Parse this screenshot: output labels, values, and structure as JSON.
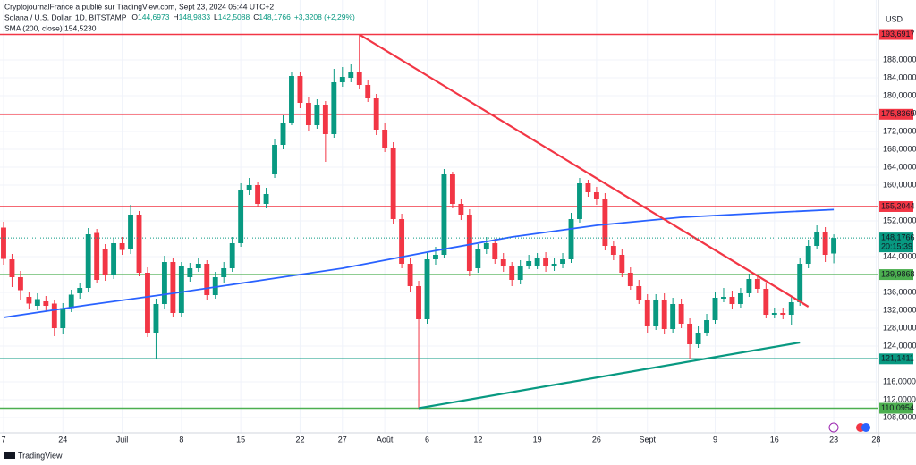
{
  "header": {
    "publisher": "CryptojournalFrance a publié sur TradingView.com, Sept 23, 2024 05:44 UTC+2",
    "symbol": "Solana / U.S. Dollar, 1D, BITSTAMP",
    "ohlc": [
      "O",
      "144,6973",
      "H",
      "148,9833",
      "L",
      "142,5088",
      "C",
      "148,1766",
      "+3,3208 (+2,29%)"
    ]
  },
  "footer": "TradingView",
  "chart_data": {
    "type": "candlestick",
    "currency": "USD",
    "up_color": "#089981",
    "down_color": "#f23645",
    "grid": true,
    "xlim": [
      -0.42,
      103.27
    ],
    "ylim": [
      104.6,
      201.4
    ],
    "xticks": [
      {
        "value": 0,
        "label": "7"
      },
      {
        "value": 7,
        "label": "24"
      },
      {
        "value": 14,
        "label": "Juil"
      },
      {
        "value": 21,
        "label": "8"
      },
      {
        "value": 28,
        "label": "15"
      },
      {
        "value": 35,
        "label": "22"
      },
      {
        "value": 40,
        "label": "27"
      },
      {
        "value": 45,
        "label": "Août"
      },
      {
        "value": 50,
        "label": "6"
      },
      {
        "value": 56,
        "label": "12"
      },
      {
        "value": 63,
        "label": "19"
      },
      {
        "value": 70,
        "label": "26"
      },
      {
        "value": 76,
        "label": "Sept"
      },
      {
        "value": 84,
        "label": "9"
      },
      {
        "value": 91,
        "label": "16"
      },
      {
        "value": 98,
        "label": "23"
      },
      {
        "value": 103,
        "label": "28"
      }
    ],
    "yticks": [
      {
        "value": 108,
        "label": "108,0000"
      },
      {
        "value": 112,
        "label": "112,0000"
      },
      {
        "value": 116,
        "label": "116,0000"
      },
      {
        "value": 124,
        "label": "124,0000"
      },
      {
        "value": 128,
        "label": "128,0000"
      },
      {
        "value": 132,
        "label": "132,0000"
      },
      {
        "value": 136,
        "label": "136,0000"
      },
      {
        "value": 144,
        "label": "144,0000"
      },
      {
        "value": 152,
        "label": "152,0000"
      },
      {
        "value": 160,
        "label": "160,0000"
      },
      {
        "value": 164,
        "label": "164,0000"
      },
      {
        "value": 168,
        "label": "168,0000"
      },
      {
        "value": 172,
        "label": "172,0000"
      },
      {
        "value": 176,
        "label": "176,0000"
      },
      {
        "value": 180,
        "label": "180,0000"
      },
      {
        "value": 184,
        "label": "184,0000"
      },
      {
        "value": 188,
        "label": "188,0000"
      }
    ],
    "open": [
      150.5,
      143.4,
      139.4,
      135,
      133,
      134,
      133.5,
      128,
      132.5,
      135.8,
      137,
      149.3,
      145.8,
      139.8,
      147,
      145.6,
      153.4,
      140.4,
      127,
      133.4,
      142.8,
      131.4,
      139.4,
      141.4,
      142.4,
      135.4,
      139.4,
      141.4,
      147,
      159,
      160,
      155.8,
      162.4,
      169,
      174,
      184.4,
      178.4,
      173.4,
      178,
      171.4,
      183,
      184,
      185.4,
      182.4,
      179.4,
      172.4,
      168.4,
      152.4,
      142.4,
      137.4,
      130,
      143.4,
      144.4,
      162.4,
      155.8,
      153.4,
      141.4,
      145.8,
      147,
      143.4,
      141.8,
      138.8,
      142,
      142,
      143.8,
      141.8,
      142.4,
      143.4,
      152.4,
      160.4,
      158.4,
      157,
      146.4,
      144.4,
      140.4,
      137.4,
      134.4,
      128.4,
      134.4,
      127.8,
      133.4,
      129,
      124.4,
      127,
      129.8,
      134.6,
      135,
      133.4,
      135.8,
      139,
      136.8,
      131,
      131.4,
      131,
      133.8,
      142.4,
      146.4,
      149.4,
      144.6973
    ],
    "high": [
      151.8,
      144.6,
      140.8,
      136.2,
      135.8,
      135.2,
      134.4,
      133.6,
      136.6,
      138.2,
      150.4,
      150.2,
      146.8,
      148.2,
      148.4,
      155.6,
      154.2,
      141.6,
      134.6,
      144.2,
      143.8,
      142.8,
      142.6,
      143.8,
      143.2,
      140.6,
      142.8,
      148.4,
      160.4,
      161.6,
      160.8,
      159.4,
      170.4,
      175.6,
      185.4,
      185.2,
      179.6,
      179.2,
      178.8,
      186,
      186.4,
      187,
      193.69,
      183.6,
      180.4,
      173.8,
      169.6,
      153.6,
      143.8,
      138.6,
      144.8,
      146.2,
      163.6,
      163,
      157,
      154.6,
      146.8,
      148.4,
      148,
      144.8,
      142.8,
      143.2,
      144.4,
      144.8,
      145,
      143.6,
      144.8,
      153.8,
      161.6,
      161.2,
      159.6,
      158.2,
      147.6,
      145.8,
      141.6,
      138.8,
      135.6,
      135.6,
      135.8,
      134.8,
      134.6,
      130.2,
      128.4,
      131.2,
      136.2,
      137,
      136.4,
      137,
      140.2,
      140,
      138,
      132.6,
      132.6,
      135,
      143.6,
      147.8,
      151,
      150.6,
      148.9833
    ],
    "low": [
      142.2,
      137.2,
      134.4,
      132.2,
      132,
      131.8,
      126.2,
      126.8,
      131.6,
      134.6,
      136,
      138,
      138.6,
      139,
      144.4,
      144.6,
      139.6,
      126,
      121.2,
      132.4,
      130.4,
      130.6,
      138.4,
      140.6,
      134.4,
      134.6,
      138.2,
      140.6,
      146.2,
      157.8,
      155,
      154.8,
      161.6,
      168,
      173.4,
      177.2,
      172,
      172.6,
      165.2,
      170.6,
      182,
      183,
      181.6,
      178.6,
      171.2,
      167.4,
      151.2,
      141.4,
      136.2,
      110.1,
      129,
      142.2,
      143.6,
      154.8,
      152.2,
      139.6,
      140.4,
      144.6,
      142.4,
      140.6,
      137.4,
      137.8,
      141.2,
      141.2,
      140.6,
      140.8,
      141.4,
      142.6,
      151.6,
      157.4,
      155.6,
      145.4,
      143.2,
      139.4,
      136.6,
      133.4,
      127,
      127.6,
      126.6,
      127,
      128,
      121.2,
      123.6,
      126.2,
      129,
      133.8,
      132.2,
      132.6,
      135,
      135.8,
      130.2,
      130.2,
      130,
      128.6,
      133,
      141.4,
      145.6,
      142.8,
      142.5088
    ],
    "close": [
      143.5,
      139.4,
      136.5,
      133.5,
      134.5,
      133,
      128,
      132.5,
      135.5,
      137,
      149,
      138.8,
      139.8,
      147,
      145.5,
      153.4,
      140.4,
      127,
      133.4,
      142.8,
      131.4,
      141.8,
      141.4,
      142.4,
      135.4,
      139.4,
      141.4,
      147,
      159,
      160,
      155.8,
      158,
      169,
      174,
      184.4,
      178.4,
      173.4,
      178,
      171.4,
      183,
      184.2,
      185.4,
      182.4,
      179.4,
      172.4,
      168.4,
      152.4,
      142.4,
      137.4,
      130,
      143.4,
      144.4,
      162.4,
      155.8,
      153.4,
      140.8,
      145.8,
      147,
      143.4,
      141.8,
      138.8,
      142,
      143,
      143.8,
      141.8,
      142.4,
      143.4,
      152.4,
      160.4,
      158.4,
      157,
      146.4,
      144.4,
      140.4,
      137.4,
      134.4,
      128.4,
      134.4,
      127.8,
      133.4,
      129,
      124.4,
      127,
      129.8,
      134.8,
      135,
      133.4,
      135.8,
      139,
      136.8,
      131,
      131.4,
      131,
      133.8,
      142.4,
      146.4,
      149.4,
      144.4,
      148.1766
    ],
    "sma": {
      "name": "SMA (200, close)",
      "color": "#2962ff",
      "last_label": "154,5230",
      "x": [
        0,
        10,
        20,
        30,
        40,
        50,
        60,
        70,
        80,
        90,
        98
      ],
      "values": [
        130.4,
        133.2,
        135.8,
        138.6,
        141.4,
        145,
        148.4,
        151,
        152.8,
        153.8,
        154.523
      ]
    },
    "levels": [
      {
        "value": 193.6917,
        "label": "193,6917",
        "color": "#f23645"
      },
      {
        "value": 175.8369,
        "label": "175,8369",
        "color": "#f23645"
      },
      {
        "value": 155.2044,
        "label": "155,2044",
        "color": "#f23645"
      },
      {
        "value": 139.9868,
        "label": "139,9868",
        "color": "#4caf50"
      },
      {
        "value": 121.1411,
        "label": "121,1411",
        "color": "#089981"
      },
      {
        "value": 110.0954,
        "label": "110,0954",
        "color": "#4caf50"
      }
    ],
    "trendlines": [
      {
        "color": "#f23645",
        "x": [
          42,
          95
        ],
        "values": [
          193.6917,
          132.8
        ]
      },
      {
        "color": "#089981",
        "x": [
          49,
          94
        ],
        "values": [
          110.1,
          124.8
        ]
      }
    ],
    "last_price": {
      "value": 148.1766,
      "label": "148,1766",
      "countdown": "20:15:39"
    }
  }
}
